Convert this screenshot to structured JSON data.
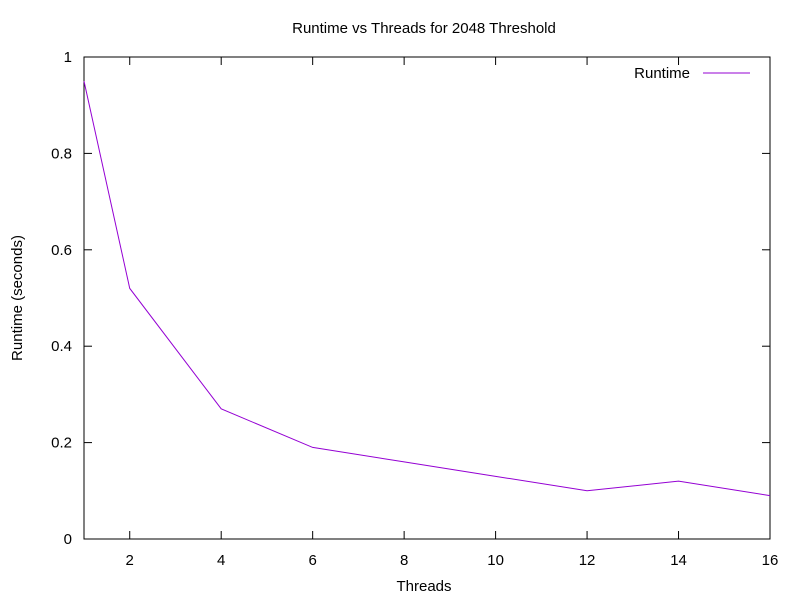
{
  "chart_data": {
    "type": "line",
    "title": "Runtime vs Threads for 2048 Threshold",
    "xlabel": "Threads",
    "ylabel": "Runtime (seconds)",
    "xlim": [
      1,
      16
    ],
    "ylim": [
      0,
      1
    ],
    "x_ticks": [
      2,
      4,
      6,
      8,
      10,
      12,
      14,
      16
    ],
    "y_ticks": [
      0,
      0.2,
      0.4,
      0.6,
      0.8,
      1
    ],
    "grid": false,
    "legend_position": "top-right",
    "series": [
      {
        "name": "Runtime",
        "color": "#9400d3",
        "x": [
          1,
          2,
          4,
          6,
          8,
          10,
          12,
          14,
          16
        ],
        "y": [
          0.95,
          0.52,
          0.27,
          0.19,
          0.16,
          0.13,
          0.1,
          0.12,
          0.09
        ]
      }
    ]
  }
}
